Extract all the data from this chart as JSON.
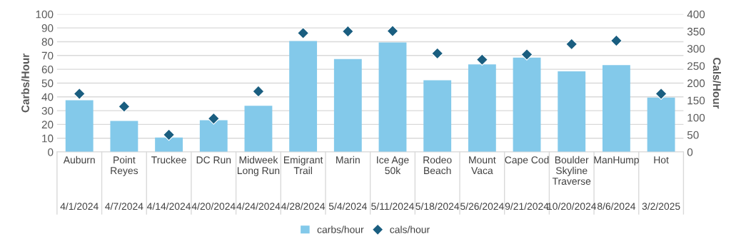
{
  "chart_data": {
    "type": "bar",
    "categories": [
      "Auburn\n4/1/2024",
      "Point Reyes\n4/7/2024",
      "Truckee\n4/14/2024",
      "DC Run\n4/20/2024",
      "Midweek Long Run\n4/24/2024",
      "Emigrant Trail\n4/28/2024",
      "Marin\n5/4/2024",
      "Ice Age 50k\n5/11/2024",
      "Rodeo Beach\n5/18/2024",
      "Mount Vaca\n5/26/2024",
      "Cape Cod\n9/21/2024",
      "Boulder Skyline Traverse\n10/20/2024",
      "ManHump\n8/6/2024",
      "Hot\n3/2/2025"
    ],
    "series": [
      {
        "name": "carbs/hour",
        "color": "#83c9ea",
        "values": [
          37.5,
          22.5,
          10.5,
          23,
          33.5,
          80.5,
          67.5,
          79.5,
          52,
          63.5,
          68.5,
          58.5,
          63,
          39.5
        ]
      },
      {
        "name": "cals/hour",
        "type": "scatter",
        "axis": "y2",
        "color": "#1a5e80",
        "marker": "diamond",
        "values": [
          169,
          132,
          50,
          97,
          176,
          345,
          350,
          351,
          286,
          268,
          283,
          313,
          323,
          169
        ]
      }
    ],
    "ylabel": "Carbs/Hour",
    "y2label": "Cals/Hour",
    "ylim": [
      0,
      100
    ],
    "yticks": [
      0,
      10,
      20,
      30,
      40,
      50,
      60,
      70,
      80,
      90,
      100
    ],
    "y2lim": [
      0,
      400
    ],
    "y2ticks": [
      0,
      50,
      100,
      150,
      200,
      250,
      300,
      350,
      400
    ],
    "grid": "y",
    "legend": "bottom"
  }
}
